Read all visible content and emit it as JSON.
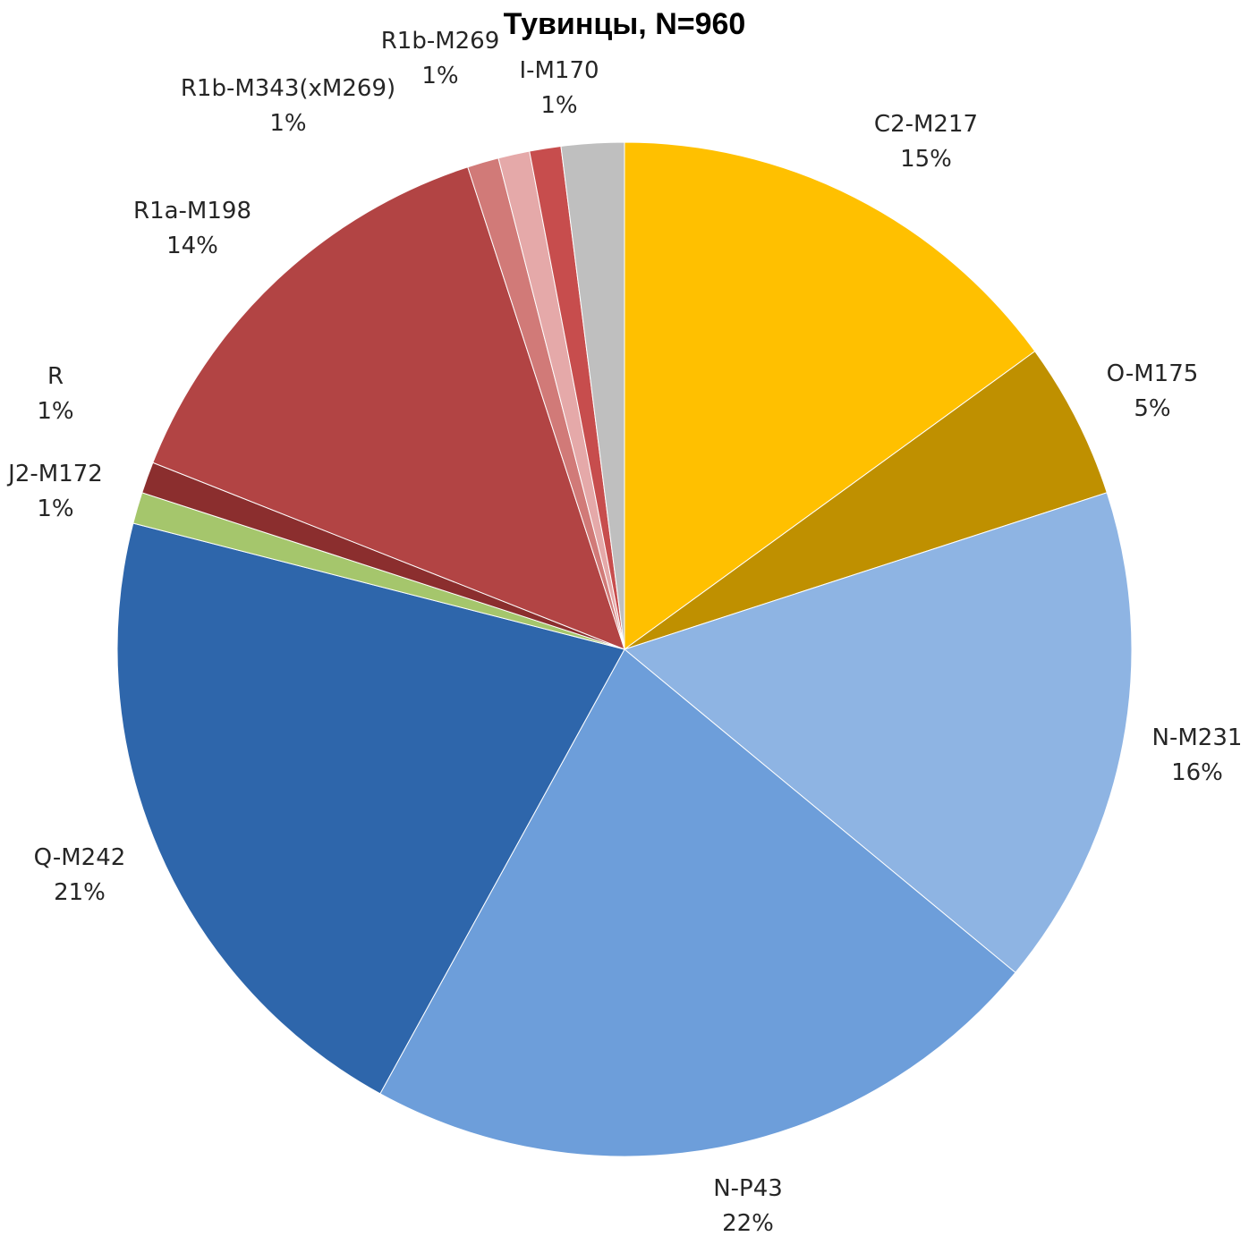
{
  "chart_data": {
    "type": "pie",
    "title": "Тувинцы, N=960",
    "start_angle_deg": 0,
    "direction": "clockwise",
    "slices": [
      {
        "label": "C2-M217",
        "value": 15,
        "display": "15%",
        "color": "#FFC000"
      },
      {
        "label": "O-M175",
        "value": 5,
        "display": "5%",
        "color": "#BF9000"
      },
      {
        "label": "N-M231",
        "value": 16,
        "display": "16%",
        "color": "#8EB4E3"
      },
      {
        "label": "N-P43",
        "value": 22,
        "display": "22%",
        "color": "#6D9EDA"
      },
      {
        "label": "Q-M242",
        "value": 21,
        "display": "21%",
        "color": "#2E66AB"
      },
      {
        "label": "J2-M172",
        "value": 1,
        "display": "1%",
        "color": "#A5C66C"
      },
      {
        "label": "R",
        "value": 1,
        "display": "1%",
        "color": "#8B2E2E"
      },
      {
        "label": "R1a-M198",
        "value": 14,
        "display": "14%",
        "color": "#B24444"
      },
      {
        "label": "R1b-M343(xM269)",
        "value": 1,
        "display": "1%",
        "color": "#D17A78"
      },
      {
        "label": "R1b-M269",
        "value": 1,
        "display": "1%",
        "color": "#E5A9A9"
      },
      {
        "label": "I-M170",
        "value": 1,
        "display": "1%",
        "color": "#C74D4D"
      },
      {
        "label": "",
        "value": 2,
        "display": "",
        "color": "#BFBFBF"
      }
    ]
  }
}
